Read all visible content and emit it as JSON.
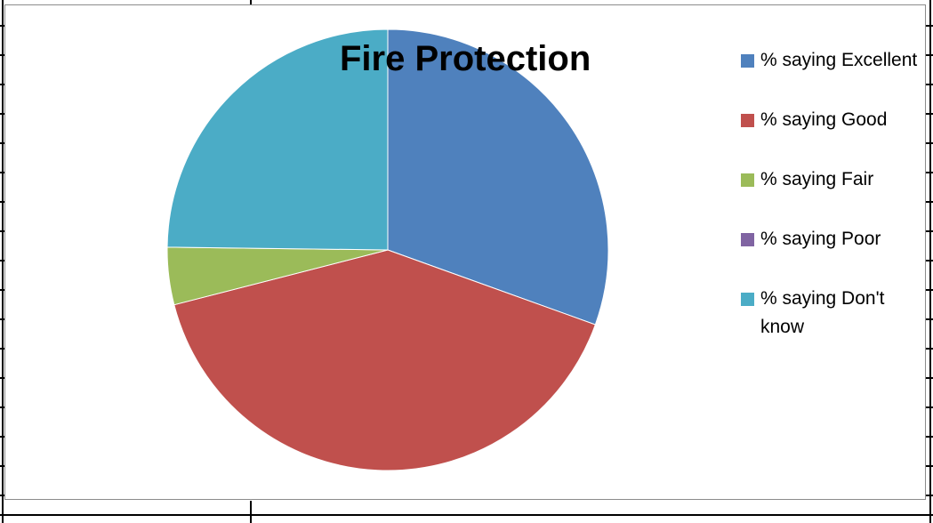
{
  "chart_data": {
    "type": "pie",
    "title": "Fire Protection",
    "categories": [
      "% saying Excellent",
      "% saying Good",
      "% saying Fair",
      "% saying Poor",
      "% saying Don't know"
    ],
    "values": [
      30.5,
      40.5,
      4.2,
      0,
      24.8
    ],
    "colors": [
      "#4f81bd",
      "#c0504d",
      "#9bbb59",
      "#8064a2",
      "#4bacc6"
    ],
    "legend_position": "right",
    "start_angle": "top, clockwise"
  },
  "legend": {
    "items": [
      {
        "label": "% saying Excellent",
        "color": "#4f81bd"
      },
      {
        "label": "% saying Good",
        "color": "#c0504d"
      },
      {
        "label": "% saying Fair",
        "color": "#9bbb59"
      },
      {
        "label": "% saying Poor",
        "color": "#8064a2"
      },
      {
        "label": "% saying Don't know",
        "color": "#4bacc6"
      }
    ]
  }
}
